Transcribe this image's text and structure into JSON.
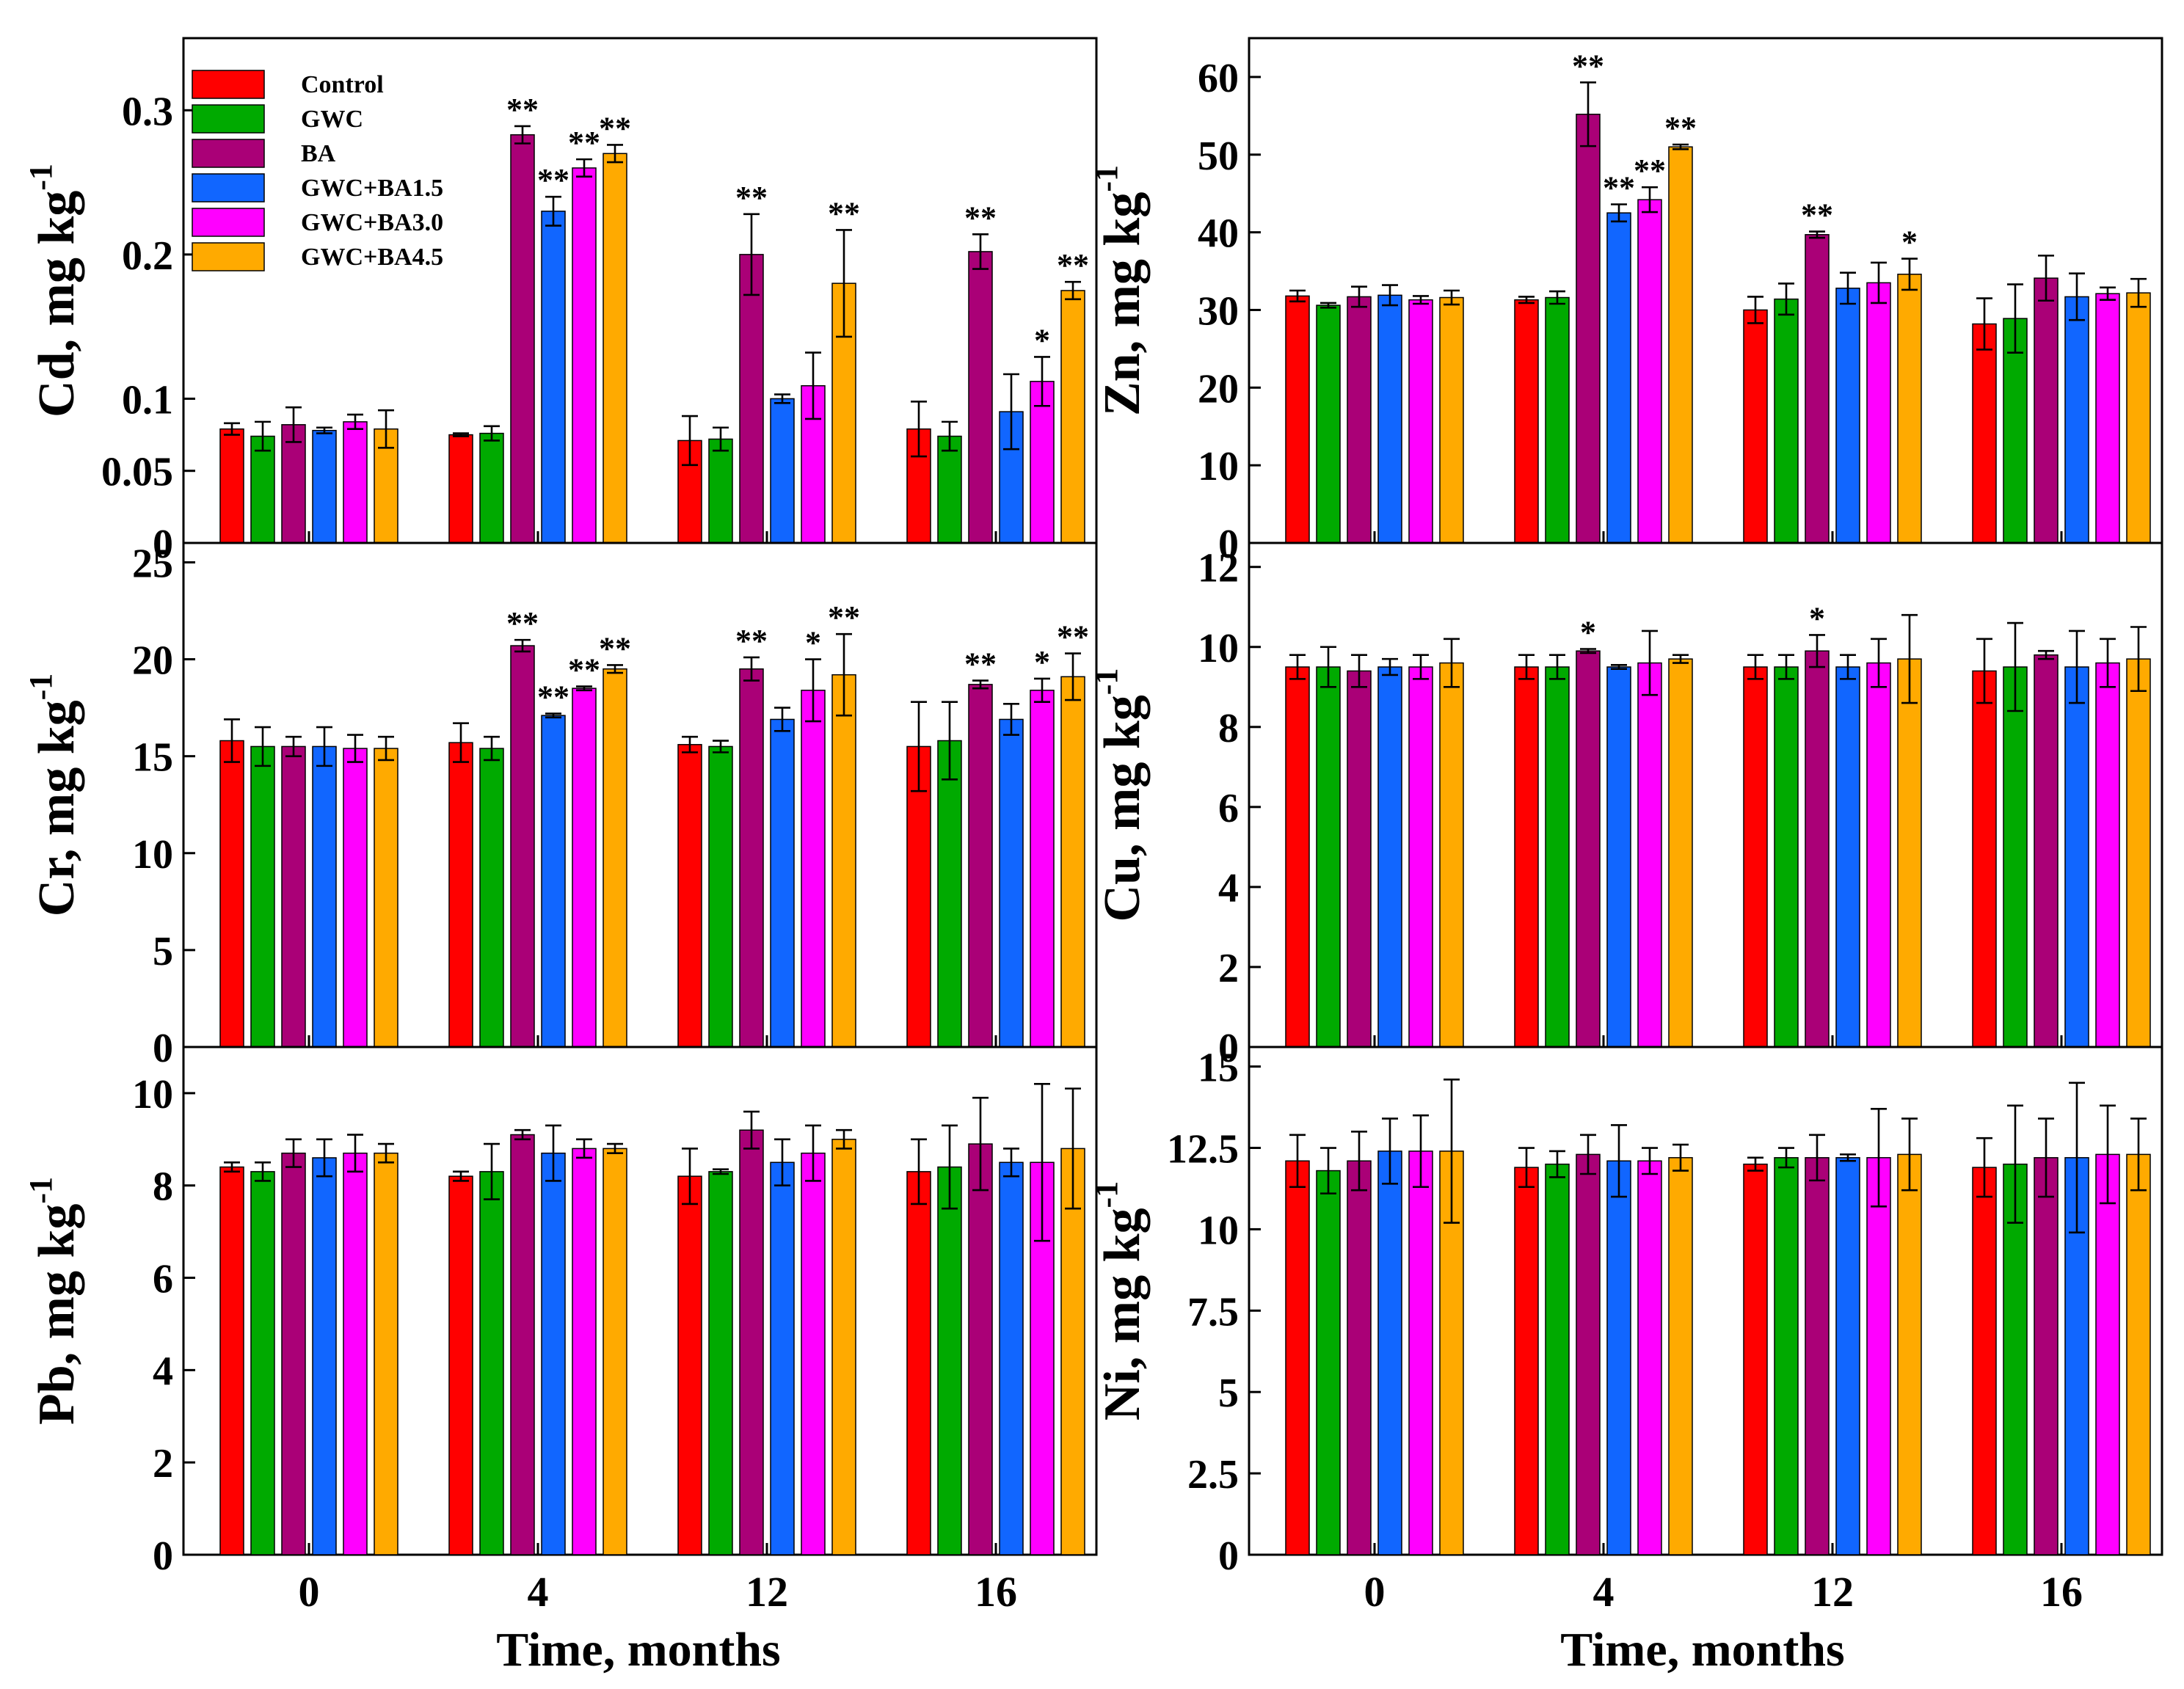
{
  "figure_xlabel": "Time, months",
  "legend": {
    "location": "top-left of Cd panel",
    "entries": [
      {
        "name": "Control",
        "color": "#ff0000"
      },
      {
        "name": "GWC",
        "color": "#00aa00"
      },
      {
        "name": "BA",
        "color": "#aa0077"
      },
      {
        "name": "GWC+BA1.5",
        "color": "#1166ff"
      },
      {
        "name": "GWC+BA3.0",
        "color": "#ff00ff"
      },
      {
        "name": "GWC+BA4.5",
        "color": "#ffaa00"
      }
    ]
  },
  "chart_data": [
    {
      "id": "cd",
      "type": "bar",
      "ylabel": "Cd, mg kg",
      "ylabel_sup": "-1",
      "categories": [
        "0",
        "4",
        "12",
        "16"
      ],
      "xlabel": "",
      "ylim": [
        0,
        0.35
      ],
      "yticks": [
        0,
        0.05,
        0.1,
        0.2,
        0.3
      ],
      "ytick_labels": [
        "0",
        "0.05",
        "0.1",
        "0.2",
        "0.3"
      ],
      "series": [
        {
          "name": "Control",
          "values": [
            0.079,
            0.075,
            0.071,
            0.079
          ],
          "errors": [
            0.004,
            0.001,
            0.017,
            0.019
          ],
          "sig": [
            "",
            "",
            "",
            ""
          ]
        },
        {
          "name": "GWC",
          "values": [
            0.074,
            0.076,
            0.072,
            0.074
          ],
          "errors": [
            0.01,
            0.005,
            0.008,
            0.01
          ],
          "sig": [
            "",
            "",
            "",
            ""
          ]
        },
        {
          "name": "BA",
          "values": [
            0.082,
            0.283,
            0.2,
            0.202
          ],
          "errors": [
            0.012,
            0.006,
            0.028,
            0.012
          ],
          "sig": [
            "",
            "**",
            "**",
            "**"
          ]
        },
        {
          "name": "GWC+BA1.5",
          "values": [
            0.078,
            0.23,
            0.1,
            0.091
          ],
          "errors": [
            0.002,
            0.01,
            0.003,
            0.026
          ],
          "sig": [
            "",
            "**",
            "",
            ""
          ]
        },
        {
          "name": "GWC+BA3.0",
          "values": [
            0.084,
            0.26,
            0.109,
            0.112
          ],
          "errors": [
            0.005,
            0.006,
            0.023,
            0.017
          ],
          "sig": [
            "",
            "**",
            "",
            "*"
          ]
        },
        {
          "name": "GWC+BA4.5",
          "values": [
            0.079,
            0.27,
            0.18,
            0.175
          ],
          "errors": [
            0.013,
            0.006,
            0.037,
            0.006
          ],
          "sig": [
            "",
            "**",
            "**",
            "**"
          ]
        }
      ]
    },
    {
      "id": "zn",
      "type": "bar",
      "ylabel": "Zn, mg kg",
      "ylabel_sup": "-1",
      "categories": [
        "0",
        "4",
        "12",
        "16"
      ],
      "xlabel": "",
      "ylim": [
        0,
        65
      ],
      "yticks": [
        0,
        10,
        20,
        30,
        40,
        50,
        60
      ],
      "ytick_labels": [
        "0",
        "10",
        "20",
        "30",
        "40",
        "50",
        "60"
      ],
      "series": [
        {
          "name": "Control",
          "values": [
            31.8,
            31.3,
            30,
            28.2
          ],
          "errors": [
            0.7,
            0.4,
            1.7,
            3.3
          ],
          "sig": [
            "",
            "",
            "",
            ""
          ]
        },
        {
          "name": "GWC",
          "values": [
            30.6,
            31.6,
            31.4,
            28.9
          ],
          "errors": [
            0.3,
            0.8,
            2,
            4.4
          ],
          "sig": [
            "",
            "",
            "",
            ""
          ]
        },
        {
          "name": "BA",
          "values": [
            31.7,
            55.2,
            39.7,
            34.1
          ],
          "errors": [
            1.3,
            4.1,
            0.4,
            2.9
          ],
          "sig": [
            "",
            "**",
            "**",
            ""
          ]
        },
        {
          "name": "GWC+BA1.5",
          "values": [
            31.9,
            42.5,
            32.8,
            31.7
          ],
          "errors": [
            1.3,
            1.1,
            2,
            3
          ],
          "sig": [
            "",
            "**",
            "",
            ""
          ]
        },
        {
          "name": "GWC+BA3.0",
          "values": [
            31.3,
            44.2,
            33.5,
            32.1
          ],
          "errors": [
            0.5,
            1.6,
            2.6,
            0.8
          ],
          "sig": [
            "",
            "**",
            "",
            ""
          ]
        },
        {
          "name": "GWC+BA4.5",
          "values": [
            31.6,
            51,
            34.6,
            32.2
          ],
          "errors": [
            0.9,
            0.3,
            2,
            1.8
          ],
          "sig": [
            "",
            "**",
            "*",
            ""
          ]
        }
      ]
    },
    {
      "id": "cr",
      "type": "bar",
      "ylabel": "Cr, mg kg",
      "ylabel_sup": "-1",
      "categories": [
        "0",
        "4",
        "12",
        "16"
      ],
      "xlabel": "",
      "ylim": [
        0,
        26
      ],
      "yticks": [
        0,
        5,
        10,
        15,
        20,
        25
      ],
      "ytick_labels": [
        "0",
        "5",
        "10",
        "15",
        "20",
        "25"
      ],
      "series": [
        {
          "name": "Control",
          "values": [
            15.8,
            15.7,
            15.6,
            15.5
          ],
          "errors": [
            1.1,
            1,
            0.4,
            2.3
          ],
          "sig": [
            "",
            "",
            "",
            ""
          ]
        },
        {
          "name": "GWC",
          "values": [
            15.5,
            15.4,
            15.5,
            15.8
          ],
          "errors": [
            1,
            0.6,
            0.3,
            2
          ],
          "sig": [
            "",
            "",
            "",
            ""
          ]
        },
        {
          "name": "BA",
          "values": [
            15.5,
            20.7,
            19.5,
            18.7
          ],
          "errors": [
            0.5,
            0.3,
            0.6,
            0.2
          ],
          "sig": [
            "",
            "**",
            "**",
            "**"
          ]
        },
        {
          "name": "GWC+BA1.5",
          "values": [
            15.5,
            17.1,
            16.9,
            16.9
          ],
          "errors": [
            1,
            0.1,
            0.6,
            0.8
          ],
          "sig": [
            "",
            "**",
            "",
            ""
          ]
        },
        {
          "name": "GWC+BA3.0",
          "values": [
            15.4,
            18.5,
            18.4,
            18.4
          ],
          "errors": [
            0.7,
            0.1,
            1.6,
            0.6
          ],
          "sig": [
            "",
            "**",
            "*",
            "*"
          ]
        },
        {
          "name": "GWC+BA4.5",
          "values": [
            15.4,
            19.5,
            19.2,
            19.1
          ],
          "errors": [
            0.6,
            0.2,
            2.1,
            1.2
          ],
          "sig": [
            "",
            "**",
            "**",
            "**"
          ]
        }
      ]
    },
    {
      "id": "cu",
      "type": "bar",
      "ylabel": "Cu, mg kg",
      "ylabel_sup": "-1",
      "categories": [
        "0",
        "4",
        "12",
        "16"
      ],
      "xlabel": "",
      "ylim": [
        0,
        12.6
      ],
      "yticks": [
        0,
        2,
        4,
        6,
        8,
        10,
        12
      ],
      "ytick_labels": [
        "0",
        "2",
        "4",
        "6",
        "8",
        "10",
        "12"
      ],
      "series": [
        {
          "name": "Control",
          "values": [
            9.5,
            9.5,
            9.5,
            9.4
          ],
          "errors": [
            0.3,
            0.3,
            0.3,
            0.8
          ],
          "sig": [
            "",
            "",
            "",
            ""
          ]
        },
        {
          "name": "GWC",
          "values": [
            9.5,
            9.5,
            9.5,
            9.5
          ],
          "errors": [
            0.5,
            0.3,
            0.3,
            1.1
          ],
          "sig": [
            "",
            "",
            "",
            ""
          ]
        },
        {
          "name": "BA",
          "values": [
            9.4,
            9.9,
            9.9,
            9.8
          ],
          "errors": [
            0.4,
            0.05,
            0.4,
            0.1
          ],
          "sig": [
            "",
            "*",
            "*",
            ""
          ]
        },
        {
          "name": "GWC+BA1.5",
          "values": [
            9.5,
            9.5,
            9.5,
            9.5
          ],
          "errors": [
            0.2,
            0.05,
            0.3,
            0.9
          ],
          "sig": [
            "",
            "",
            "",
            ""
          ]
        },
        {
          "name": "GWC+BA3.0",
          "values": [
            9.5,
            9.6,
            9.6,
            9.6
          ],
          "errors": [
            0.3,
            0.8,
            0.6,
            0.6
          ],
          "sig": [
            "",
            "",
            "",
            ""
          ]
        },
        {
          "name": "GWC+BA4.5",
          "values": [
            9.6,
            9.7,
            9.7,
            9.7
          ],
          "errors": [
            0.6,
            0.1,
            1.1,
            0.8
          ],
          "sig": [
            "",
            "",
            "",
            ""
          ]
        }
      ]
    },
    {
      "id": "pb",
      "type": "bar",
      "ylabel": "Pb, mg kg",
      "ylabel_sup": "-1",
      "categories": [
        "0",
        "4",
        "12",
        "16"
      ],
      "xlabel": "Time, months",
      "ylim": [
        0,
        11
      ],
      "yticks": [
        0,
        2,
        4,
        6,
        8,
        10
      ],
      "ytick_labels": [
        "0",
        "2",
        "4",
        "6",
        "8",
        "10"
      ],
      "series": [
        {
          "name": "Control",
          "values": [
            8.4,
            8.2,
            8.2,
            8.3
          ],
          "errors": [
            0.1,
            0.1,
            0.6,
            0.7
          ],
          "sig": [
            "",
            "",
            "",
            ""
          ]
        },
        {
          "name": "GWC",
          "values": [
            8.3,
            8.3,
            8.3,
            8.4
          ],
          "errors": [
            0.2,
            0.6,
            0.05,
            0.9
          ],
          "sig": [
            "",
            "",
            "",
            ""
          ]
        },
        {
          "name": "BA",
          "values": [
            8.7,
            9.1,
            9.2,
            8.9
          ],
          "errors": [
            0.3,
            0.1,
            0.4,
            1
          ],
          "sig": [
            "",
            "",
            "",
            ""
          ]
        },
        {
          "name": "GWC+BA1.5",
          "values": [
            8.6,
            8.7,
            8.5,
            8.5
          ],
          "errors": [
            0.4,
            0.6,
            0.5,
            0.3
          ],
          "sig": [
            "",
            "",
            "",
            ""
          ]
        },
        {
          "name": "GWC+BA3.0",
          "values": [
            8.7,
            8.8,
            8.7,
            8.5
          ],
          "errors": [
            0.4,
            0.2,
            0.6,
            1.7
          ],
          "sig": [
            "",
            "",
            "",
            ""
          ]
        },
        {
          "name": "GWC+BA4.5",
          "values": [
            8.7,
            8.8,
            9,
            8.8
          ],
          "errors": [
            0.2,
            0.1,
            0.2,
            1.3
          ],
          "sig": [
            "",
            "",
            "",
            ""
          ]
        }
      ]
    },
    {
      "id": "ni",
      "type": "bar",
      "ylabel": "Ni, mg kg",
      "ylabel_sup": "-1",
      "categories": [
        "0",
        "4",
        "12",
        "16"
      ],
      "xlabel": "Time, months",
      "ylim": [
        0,
        15.6
      ],
      "yticks": [
        0,
        2.5,
        5,
        7.5,
        10,
        12.5,
        15
      ],
      "ytick_labels": [
        "0",
        "2.5",
        "5",
        "7.5",
        "10",
        "12.5",
        "15"
      ],
      "series": [
        {
          "name": "Control",
          "values": [
            12.1,
            11.9,
            12,
            11.9
          ],
          "errors": [
            0.8,
            0.6,
            0.2,
            0.9
          ],
          "sig": [
            "",
            "",
            "",
            ""
          ]
        },
        {
          "name": "GWC",
          "values": [
            11.8,
            12,
            12.2,
            12
          ],
          "errors": [
            0.7,
            0.4,
            0.3,
            1.8
          ],
          "sig": [
            "",
            "",
            "",
            ""
          ]
        },
        {
          "name": "BA",
          "values": [
            12.1,
            12.3,
            12.2,
            12.2
          ],
          "errors": [
            0.9,
            0.6,
            0.7,
            1.2
          ],
          "sig": [
            "",
            "",
            "",
            ""
          ]
        },
        {
          "name": "GWC+BA1.5",
          "values": [
            12.4,
            12.1,
            12.2,
            12.2
          ],
          "errors": [
            1,
            1.1,
            0.1,
            2.3
          ],
          "sig": [
            "",
            "",
            "",
            ""
          ]
        },
        {
          "name": "GWC+BA3.0",
          "values": [
            12.4,
            12.1,
            12.2,
            12.3
          ],
          "errors": [
            1.1,
            0.4,
            1.5,
            1.5
          ],
          "sig": [
            "",
            "",
            "",
            ""
          ]
        },
        {
          "name": "GWC+BA4.5",
          "values": [
            12.4,
            12.2,
            12.3,
            12.3
          ],
          "errors": [
            2.2,
            0.4,
            1.1,
            1.1
          ],
          "sig": [
            "",
            "",
            "",
            ""
          ]
        }
      ]
    }
  ]
}
